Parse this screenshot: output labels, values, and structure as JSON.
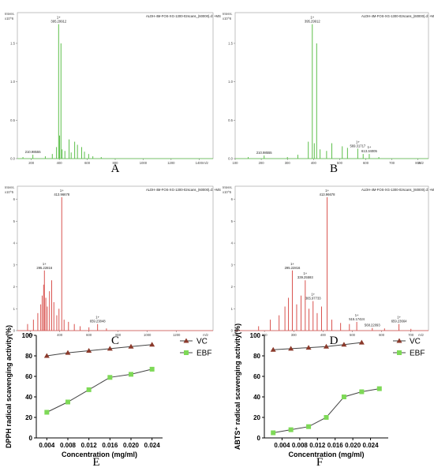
{
  "chart_data": [
    {
      "panel": "A",
      "type": "bar",
      "header_text": "ALDH-4M-FOS-XG-1300-02scans_(60000).d: +MS",
      "y_label": "Intens.",
      "y_scale": "x10^6",
      "y_ticks": [
        "0.0",
        "0.5",
        "1.0",
        "1.5"
      ],
      "x_unit": "m/z",
      "x_ticks": [
        "200",
        "400",
        "600",
        "800",
        "1000",
        "1200",
        "1400"
      ],
      "xlim": [
        100,
        1500
      ],
      "ylim": [
        0,
        1.9
      ],
      "color": "#5cbf4a",
      "peak_labels": [
        {
          "x": 395.29912,
          "y": 1.75,
          "text": "395.29912",
          "charge": "1+"
        },
        {
          "x": 210.98555,
          "y": 0.05,
          "text": "210.98555",
          "charge": ""
        }
      ],
      "peaks": [
        {
          "x": 140,
          "y": 0.02
        },
        {
          "x": 210.98555,
          "y": 0.05
        },
        {
          "x": 300,
          "y": 0.03
        },
        {
          "x": 350,
          "y": 0.06
        },
        {
          "x": 380,
          "y": 0.15
        },
        {
          "x": 395.29912,
          "y": 1.75
        },
        {
          "x": 402,
          "y": 0.3
        },
        {
          "x": 412,
          "y": 1.5
        },
        {
          "x": 420,
          "y": 0.12
        },
        {
          "x": 440,
          "y": 0.1
        },
        {
          "x": 470,
          "y": 0.25
        },
        {
          "x": 485,
          "y": 0.08
        },
        {
          "x": 510,
          "y": 0.22
        },
        {
          "x": 530,
          "y": 0.18
        },
        {
          "x": 560,
          "y": 0.15
        },
        {
          "x": 580,
          "y": 0.09
        },
        {
          "x": 610,
          "y": 0.06
        },
        {
          "x": 640,
          "y": 0.03
        },
        {
          "x": 700,
          "y": 0.02
        }
      ],
      "label": "A"
    },
    {
      "panel": "B",
      "type": "bar",
      "header_text": "ALDH-4M-FOS-XG-1300-02scans_(60000).d: +MS",
      "y_label": "Intens.",
      "y_scale": "x10^6",
      "y_ticks": [
        "0.0",
        "0.5",
        "1.0",
        "1.5"
      ],
      "x_unit": "m/z",
      "x_ticks": [
        "100",
        "200",
        "300",
        "400",
        "500",
        "600",
        "700",
        "800"
      ],
      "xlim": [
        100,
        840
      ],
      "ylim": [
        0,
        1.9
      ],
      "color": "#5cbf4a",
      "peak_labels": [
        {
          "x": 395.29912,
          "y": 1.75,
          "text": "395.29912",
          "charge": "1+"
        },
        {
          "x": 210.98555,
          "y": 0.04,
          "text": "210.98555",
          "charge": ""
        },
        {
          "x": 569.31717,
          "y": 0.13,
          "text": "569.31717",
          "charge": "1+"
        },
        {
          "x": 613.34005,
          "y": 0.06,
          "text": "613.34005",
          "charge": "1+"
        }
      ],
      "peaks": [
        {
          "x": 150,
          "y": 0.02
        },
        {
          "x": 210.98555,
          "y": 0.04
        },
        {
          "x": 300,
          "y": 0.02
        },
        {
          "x": 340,
          "y": 0.05
        },
        {
          "x": 380,
          "y": 0.22
        },
        {
          "x": 395.29912,
          "y": 1.75
        },
        {
          "x": 403,
          "y": 0.2
        },
        {
          "x": 412,
          "y": 1.5
        },
        {
          "x": 425,
          "y": 0.12
        },
        {
          "x": 450,
          "y": 0.1
        },
        {
          "x": 470,
          "y": 0.2
        },
        {
          "x": 510,
          "y": 0.16
        },
        {
          "x": 530,
          "y": 0.14
        },
        {
          "x": 569.31717,
          "y": 0.13
        },
        {
          "x": 590,
          "y": 0.06
        },
        {
          "x": 613.34005,
          "y": 0.06
        },
        {
          "x": 650,
          "y": 0.02
        }
      ],
      "label": "B"
    },
    {
      "panel": "C",
      "type": "bar",
      "header_text": "ALDH-4M-FOS-XG-1300-02scans_(60000).d: +MS",
      "y_label": "Intens.",
      "y_scale": "x10^5",
      "y_ticks": [
        "0",
        "1",
        "2",
        "3",
        "4",
        "5",
        "6"
      ],
      "x_unit": "m/z",
      "x_ticks": [
        "200",
        "400",
        "600",
        "800",
        "1000",
        "1200"
      ],
      "xlim": [
        110,
        1450
      ],
      "ylim": [
        0,
        6.6
      ],
      "color": "#d9534f",
      "peak_labels": [
        {
          "x": 413.96678,
          "y": 6.1,
          "text": "413.96678",
          "charge": "1+"
        },
        {
          "x": 295.22816,
          "y": 2.75,
          "text": "295.22816",
          "charge": "1+"
        },
        {
          "x": 659.23848,
          "y": 0.3,
          "text": "659.23848",
          "charge": "1+"
        }
      ],
      "peaks": [
        {
          "x": 180,
          "y": 0.3
        },
        {
          "x": 220,
          "y": 0.5
        },
        {
          "x": 250,
          "y": 0.8
        },
        {
          "x": 270,
          "y": 1.2
        },
        {
          "x": 280,
          "y": 1.6
        },
        {
          "x": 290,
          "y": 2.1
        },
        {
          "x": 295.22816,
          "y": 2.75
        },
        {
          "x": 305,
          "y": 1.5
        },
        {
          "x": 315,
          "y": 1.1
        },
        {
          "x": 330,
          "y": 1.8
        },
        {
          "x": 345,
          "y": 2.3
        },
        {
          "x": 360,
          "y": 1.3
        },
        {
          "x": 380,
          "y": 0.7
        },
        {
          "x": 395,
          "y": 1.0
        },
        {
          "x": 413.96678,
          "y": 6.1
        },
        {
          "x": 430,
          "y": 0.5
        },
        {
          "x": 460,
          "y": 0.4
        },
        {
          "x": 500,
          "y": 0.3
        },
        {
          "x": 540,
          "y": 0.2
        },
        {
          "x": 600,
          "y": 0.15
        },
        {
          "x": 659.23848,
          "y": 0.3
        },
        {
          "x": 720,
          "y": 0.1
        }
      ],
      "label": "C"
    },
    {
      "panel": "D",
      "type": "bar",
      "header_text": "ALDH-4M-FOS-XG-1300-02scans_(60000).d: +MS",
      "y_label": "Intens.",
      "y_scale": "x10^5",
      "y_ticks": [
        "0",
        "1",
        "2",
        "3",
        "4",
        "5",
        "6"
      ],
      "x_unit": "m/z",
      "x_ticks": [
        "100",
        "200",
        "300",
        "400",
        "500",
        "600",
        "700"
      ],
      "xlim": [
        100,
        760
      ],
      "ylim": [
        0,
        6.6
      ],
      "color": "#d9534f",
      "peak_labels": [
        {
          "x": 413.96678,
          "y": 6.1,
          "text": "413.96678",
          "charge": "1+"
        },
        {
          "x": 295.22816,
          "y": 2.75,
          "text": "295.22816",
          "charge": "1+"
        },
        {
          "x": 339.25593,
          "y": 2.3,
          "text": "339.25593",
          "charge": "1+"
        },
        {
          "x": 365.97733,
          "y": 1.35,
          "text": "365.97733",
          "charge": "1+"
        },
        {
          "x": 515.17424,
          "y": 0.4,
          "text": "515.17424",
          "charge": "1+"
        },
        {
          "x": 568.22093,
          "y": 0.12,
          "text": "568.22093",
          "charge": ""
        },
        {
          "x": 659.23664,
          "y": 0.3,
          "text": "659.23664",
          "charge": "1+"
        }
      ],
      "peaks": [
        {
          "x": 180,
          "y": 0.2
        },
        {
          "x": 220,
          "y": 0.5
        },
        {
          "x": 250,
          "y": 0.7
        },
        {
          "x": 270,
          "y": 1.1
        },
        {
          "x": 282,
          "y": 1.5
        },
        {
          "x": 295.22816,
          "y": 2.75
        },
        {
          "x": 310,
          "y": 1.2
        },
        {
          "x": 325,
          "y": 1.6
        },
        {
          "x": 339.25593,
          "y": 2.3
        },
        {
          "x": 352,
          "y": 1.0
        },
        {
          "x": 365.97733,
          "y": 1.35
        },
        {
          "x": 380,
          "y": 0.8
        },
        {
          "x": 395,
          "y": 1.1
        },
        {
          "x": 413.96678,
          "y": 6.1
        },
        {
          "x": 430,
          "y": 0.5
        },
        {
          "x": 460,
          "y": 0.35
        },
        {
          "x": 490,
          "y": 0.3
        },
        {
          "x": 515.17424,
          "y": 0.4
        },
        {
          "x": 568.22093,
          "y": 0.12
        },
        {
          "x": 610,
          "y": 0.1
        },
        {
          "x": 659.23664,
          "y": 0.3
        },
        {
          "x": 700,
          "y": 0.08
        }
      ],
      "label": "D"
    },
    {
      "panel": "E",
      "type": "line",
      "xlabel": "Concentration (mg/ml)",
      "ylabel": "DPPH radical scavenging activity(%)",
      "x": [
        0.004,
        0.008,
        0.012,
        0.016,
        0.02,
        0.024
      ],
      "x_ticks": [
        "0.004",
        "0.008",
        "0.012",
        "0.016",
        "0.020",
        "0.024"
      ],
      "y_ticks": [
        "0",
        "20",
        "40",
        "60",
        "80",
        "100"
      ],
      "ylim": [
        0,
        100
      ],
      "series": [
        {
          "name": "VC",
          "values": [
            80,
            83,
            85,
            87,
            89,
            91
          ],
          "color": "#8b3a2b",
          "marker": "triangle"
        },
        {
          "name": "EBF",
          "values": [
            25,
            35,
            47,
            59,
            62,
            67
          ],
          "color": "#7ed957",
          "marker": "square"
        }
      ],
      "legend_position": "right",
      "label": "E"
    },
    {
      "panel": "F",
      "type": "line",
      "xlabel": "Concentration (mg/ml)",
      "ylabel": "ABTS⁺ radical scavenging activity(%)",
      "x": [
        0.002,
        0.006,
        0.01,
        0.014,
        0.018,
        0.022,
        0.026
      ],
      "x_ticks": [
        "0.004",
        "0.008",
        "0.012",
        "0.016",
        "0.020",
        "0.024"
      ],
      "y_ticks": [
        "0",
        "20",
        "40",
        "60",
        "80",
        "100"
      ],
      "ylim": [
        0,
        100
      ],
      "series": [
        {
          "name": "VC",
          "values": [
            86,
            87,
            88,
            89,
            91,
            93,
            null
          ],
          "color": "#8b3a2b",
          "marker": "triangle"
        },
        {
          "name": "EBF",
          "values": [
            5,
            8,
            11,
            20,
            40,
            45,
            48
          ],
          "color": "#7ed957",
          "marker": "square"
        }
      ],
      "legend_position": "right",
      "label": "F"
    }
  ]
}
